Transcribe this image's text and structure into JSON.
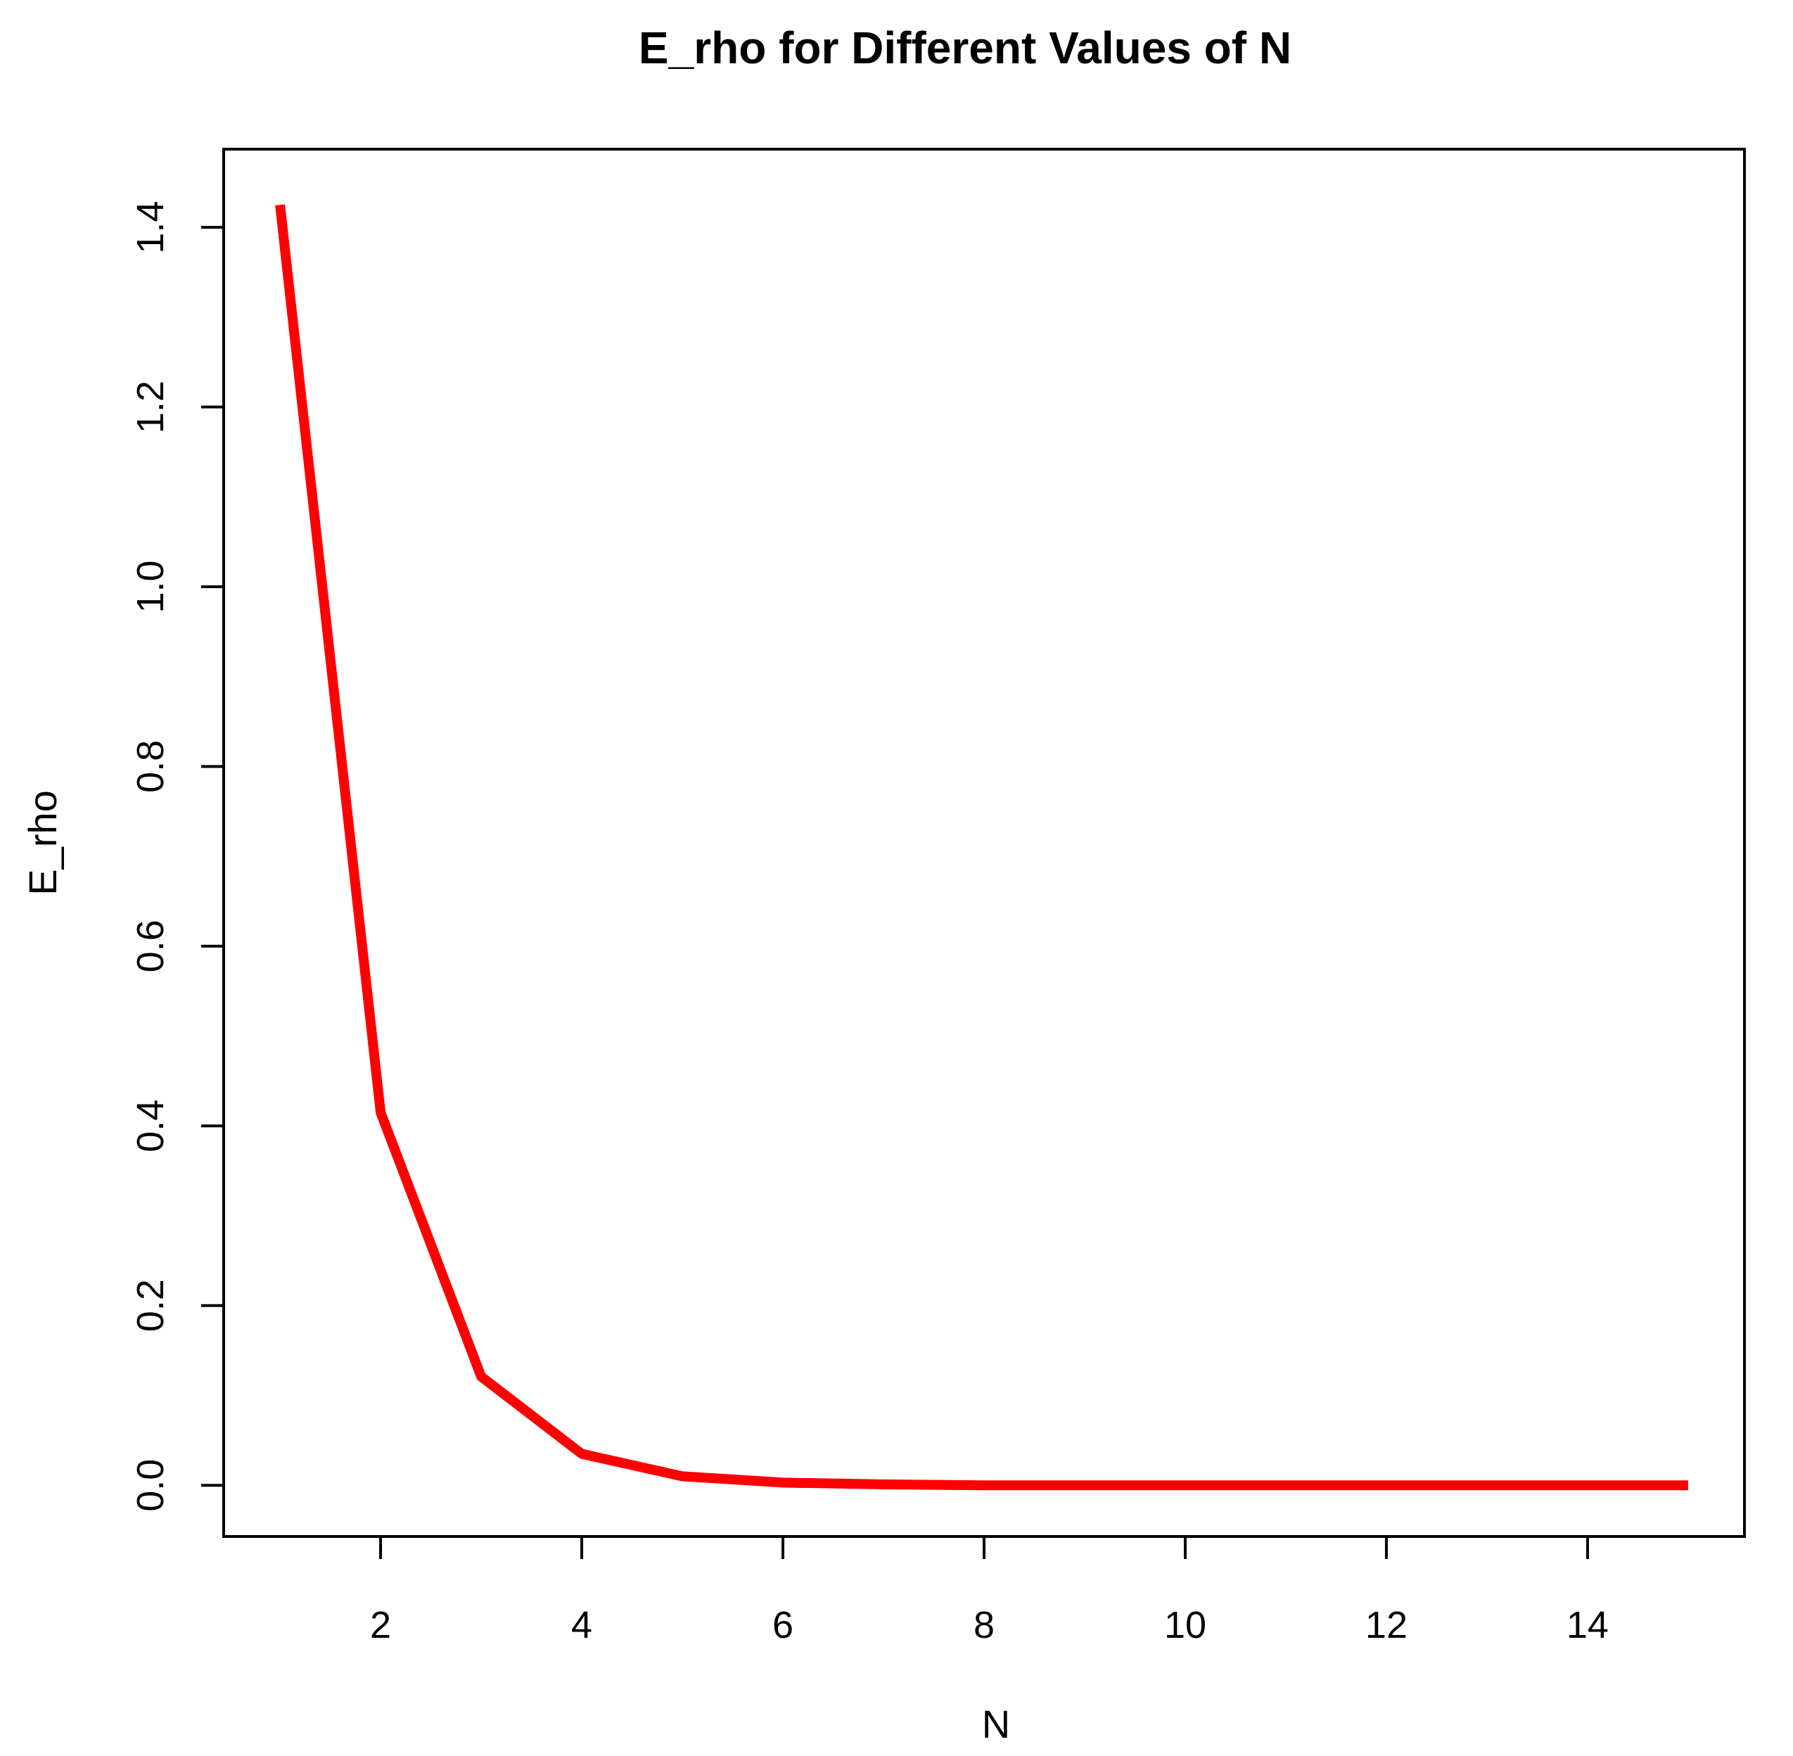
{
  "chart_data": {
    "type": "line",
    "title": "E_rho for Different Values of N",
    "xlabel": "N",
    "ylabel": "E_rho",
    "xlim": [
      0.44,
      15.56
    ],
    "ylim": [
      -0.057,
      1.487
    ],
    "xticks": [
      2,
      4,
      6,
      8,
      10,
      12,
      14
    ],
    "xtick_labels": [
      "2",
      "4",
      "6",
      "8",
      "10",
      "12",
      "14"
    ],
    "yticks": [
      0.0,
      0.2,
      0.4,
      0.6,
      0.8,
      1.0,
      1.2,
      1.4
    ],
    "ytick_labels": [
      "0.0",
      "0.2",
      "0.4",
      "0.6",
      "0.8",
      "1.0",
      "1.2",
      "1.4"
    ],
    "grid": false,
    "legend": "none",
    "series": [
      {
        "color": "#ff0000",
        "x": [
          1,
          2,
          3,
          4,
          5,
          6,
          7,
          8,
          9,
          10,
          11,
          12,
          13,
          14,
          15
        ],
        "y": [
          1.425,
          0.415,
          0.121,
          0.035,
          0.01,
          0.003,
          0.001,
          0.0,
          0.0,
          0.0,
          0.0,
          0.0,
          0.0,
          0.0,
          0.0
        ]
      }
    ]
  }
}
